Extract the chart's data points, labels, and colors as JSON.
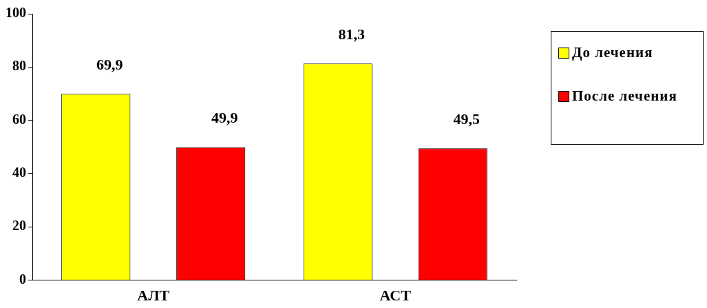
{
  "chart_data": {
    "type": "bar",
    "categories": [
      "АЛТ",
      "АСТ"
    ],
    "series": [
      {
        "name": "До лечения",
        "color": "#ffff00",
        "values": [
          69.9,
          81.3
        ],
        "value_labels": [
          "69,9",
          "81,3"
        ]
      },
      {
        "name": "После лечения",
        "color": "#ff0000",
        "values": [
          49.9,
          49.5
        ],
        "value_labels": [
          "49,9",
          "49,5"
        ]
      }
    ],
    "ylim": [
      0,
      100
    ],
    "yticks": [
      0,
      20,
      40,
      60,
      80,
      100
    ],
    "grid": false,
    "legend": "right"
  }
}
